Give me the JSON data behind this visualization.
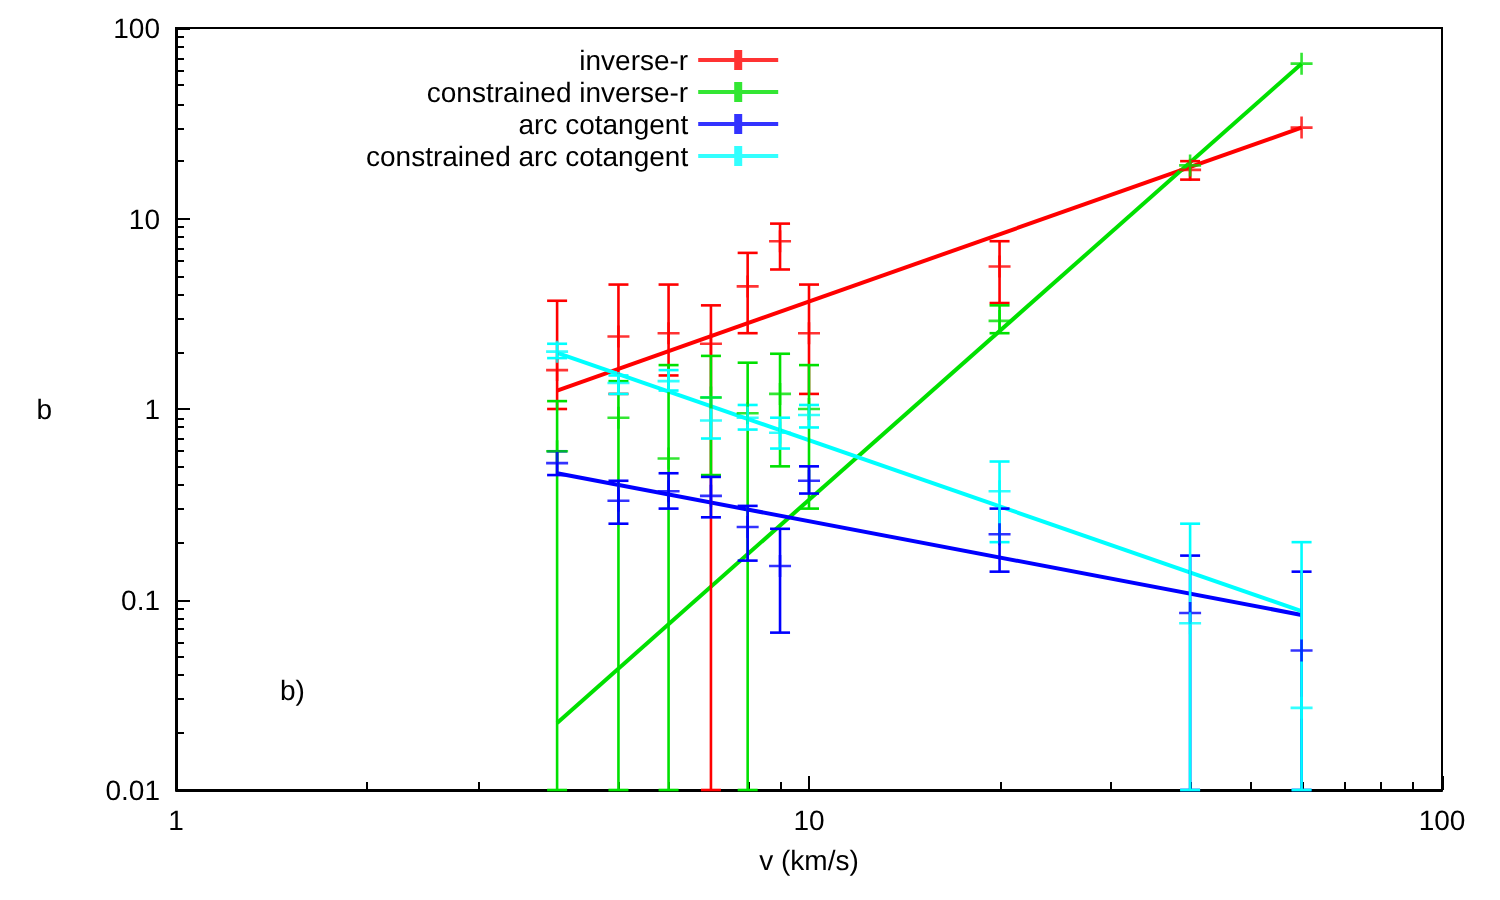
{
  "chart_data": {
    "type": "scatter",
    "xlabel": "v (km/s)",
    "ylabel": "b",
    "log": "xy",
    "xlim": [
      1,
      100
    ],
    "xticks": [
      1,
      10,
      100
    ],
    "ylim": [
      0.01,
      100
    ],
    "yticks": [
      0.01,
      0.1,
      1,
      10,
      100
    ],
    "grid": false,
    "legend": "top",
    "marker": "cross",
    "annotations": [
      "b)"
    ],
    "series": [
      {
        "name": "inverse-r",
        "color": "#ff0000",
        "x": [
          4,
          5,
          6,
          7,
          8,
          9,
          10,
          20,
          40,
          60
        ],
        "values": [
          1.6,
          2.4,
          2.5,
          2.2,
          4.4,
          7.6,
          2.5,
          5.6,
          18,
          30
        ],
        "errors": [
          [
            1.0,
            3.7
          ],
          [
            1.2,
            4.5
          ],
          [
            1.5,
            4.5
          ],
          [
            0.01,
            3.5
          ],
          [
            2.5,
            6.6
          ],
          [
            5.4,
            9.4
          ],
          [
            1.2,
            4.5
          ],
          [
            3.6,
            7.6
          ],
          [
            16,
            20
          ],
          null
        ]
      },
      {
        "name": "constrained inverse-r",
        "color": "#00e000",
        "x": [
          4,
          5,
          6,
          7,
          8,
          9,
          10,
          20,
          40,
          60
        ],
        "values": [
          0.6,
          0.9,
          0.55,
          1.15,
          0.95,
          1.2,
          1.0,
          2.9,
          19,
          65
        ],
        "errors": [
          [
            0.01,
            1.1
          ],
          [
            0.01,
            1.4
          ],
          [
            0.01,
            1.7
          ],
          [
            0.45,
            1.9
          ],
          [
            0.01,
            1.75
          ],
          [
            0.5,
            1.95
          ],
          [
            0.3,
            1.7
          ],
          [
            2.5,
            3.5
          ],
          null,
          null
        ]
      },
      {
        "name": "arc cotangent",
        "color": "#0000ff",
        "x": [
          4,
          5,
          6,
          7,
          8,
          9,
          10,
          20,
          40,
          60
        ],
        "values": [
          0.52,
          0.33,
          0.37,
          0.35,
          0.24,
          0.15,
          0.42,
          0.22,
          0.085,
          0.054
        ],
        "errors": [
          [
            0.45,
            0.6
          ],
          [
            0.25,
            0.42
          ],
          [
            0.3,
            0.46
          ],
          [
            0.27,
            0.44
          ],
          [
            0.16,
            0.31
          ],
          [
            0.067,
            0.235
          ],
          [
            0.36,
            0.5
          ],
          [
            0.14,
            0.3
          ],
          [
            0.01,
            0.17
          ],
          [
            0.01,
            0.14
          ]
        ]
      },
      {
        "name": "constrained arc cotangent",
        "color": "#00ffff",
        "x": [
          4,
          5,
          6,
          7,
          8,
          9,
          10,
          20,
          40,
          60
        ],
        "values": [
          2.0,
          1.37,
          1.4,
          0.87,
          0.9,
          0.75,
          0.93,
          0.37,
          0.075,
          0.027
        ],
        "errors": [
          [
            1.85,
            2.2
          ],
          [
            1.2,
            1.5
          ],
          [
            1.25,
            1.6
          ],
          [
            0.7,
            1.15
          ],
          [
            0.78,
            1.05
          ],
          [
            0.62,
            0.9
          ],
          [
            0.8,
            1.05
          ],
          [
            0.2,
            0.53
          ],
          [
            0.01,
            0.25
          ],
          [
            0.01,
            0.2
          ]
        ]
      },
      {
        "type": "line",
        "marker": "none",
        "color": "#ff0000",
        "x": [
          4,
          60
        ],
        "values": [
          1.25,
          30
        ]
      },
      {
        "type": "line",
        "marker": "none",
        "color": "#00e000",
        "x": [
          4,
          60
        ],
        "values": [
          0.0225,
          65
        ]
      },
      {
        "type": "line",
        "marker": "none",
        "color": "#0000ff",
        "x": [
          4,
          60
        ],
        "values": [
          0.46,
          0.083
        ]
      },
      {
        "type": "line",
        "marker": "none",
        "color": "#00ffff",
        "x": [
          4,
          60
        ],
        "values": [
          1.97,
          0.087
        ]
      }
    ]
  }
}
